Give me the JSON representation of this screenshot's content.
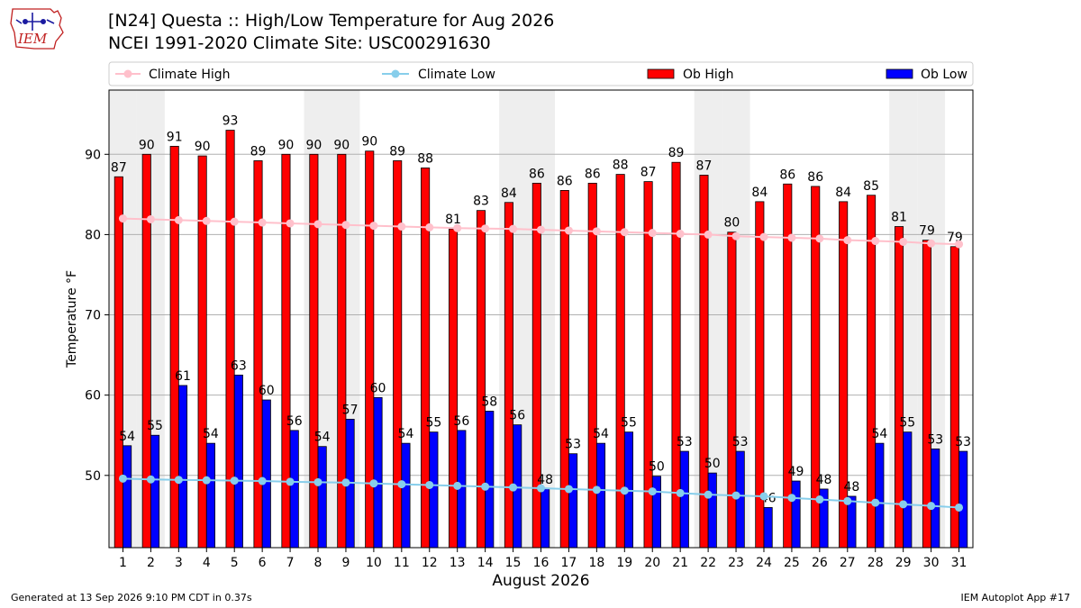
{
  "page": {
    "title_line1": "[N24] Questa :: High/Low Temperature for Aug 2026",
    "title_line2": "NCEI 1991-2020 Climate Site: USC00291630",
    "logo_text": "IEM",
    "footer_left": "Generated at 13 Sep 2026 9:10 PM CDT in 0.37s",
    "footer_right": "IEM Autoplot App #17"
  },
  "chart_data": {
    "type": "bar",
    "xlabel": "August 2026",
    "ylabel": "Temperature °F",
    "ylim": [
      41,
      98
    ],
    "yticks": [
      50,
      60,
      70,
      80,
      90
    ],
    "grid": true,
    "legend_placement": "top",
    "categories": [
      1,
      2,
      3,
      4,
      5,
      6,
      7,
      8,
      9,
      10,
      11,
      12,
      13,
      14,
      15,
      16,
      17,
      18,
      19,
      20,
      21,
      22,
      23,
      24,
      25,
      26,
      27,
      28,
      29,
      30,
      31
    ],
    "weekend_days": [
      1,
      2,
      8,
      9,
      15,
      16,
      22,
      23,
      29,
      30
    ],
    "series": [
      {
        "name": "Ob High",
        "kind": "bar",
        "color": "#ff0000",
        "values": [
          87.2,
          90.0,
          91.0,
          89.8,
          93.0,
          89.2,
          90.0,
          90.0,
          90.0,
          90.4,
          89.2,
          88.3,
          80.7,
          83.0,
          84.0,
          86.4,
          85.5,
          86.4,
          87.5,
          86.6,
          89.0,
          87.4,
          80.3,
          84.1,
          86.3,
          86.0,
          84.1,
          84.9,
          81.0,
          79.3,
          78.5
        ],
        "labels": [
          87,
          90,
          91,
          90,
          93,
          89,
          90,
          90,
          90,
          90,
          89,
          88,
          81,
          83,
          84,
          86,
          86,
          86,
          88,
          87,
          89,
          87,
          80,
          84,
          86,
          86,
          84,
          85,
          81,
          79,
          79
        ]
      },
      {
        "name": "Ob Low",
        "kind": "bar",
        "color": "#0000ff",
        "values": [
          53.7,
          55.0,
          61.2,
          54.0,
          62.5,
          59.4,
          55.6,
          53.6,
          57.0,
          59.7,
          54.0,
          55.4,
          55.6,
          58.0,
          56.3,
          48.3,
          52.7,
          54.0,
          55.4,
          49.9,
          53.0,
          50.3,
          53.0,
          46.0,
          49.3,
          48.3,
          47.4,
          54.0,
          55.4,
          53.3,
          53.0
        ],
        "labels": [
          54,
          55,
          61,
          54,
          63,
          60,
          56,
          54,
          57,
          60,
          54,
          55,
          56,
          58,
          56,
          48,
          53,
          54,
          55,
          50,
          53,
          50,
          53,
          46,
          49,
          48,
          48,
          54,
          55,
          53,
          53
        ]
      },
      {
        "name": "Climate High",
        "kind": "line",
        "color": "#ffc0cb",
        "values": [
          82.0,
          81.9,
          81.8,
          81.7,
          81.6,
          81.5,
          81.4,
          81.3,
          81.2,
          81.1,
          81.0,
          80.9,
          80.8,
          80.75,
          80.7,
          80.6,
          80.5,
          80.4,
          80.3,
          80.2,
          80.1,
          80.0,
          79.8,
          79.7,
          79.6,
          79.5,
          79.3,
          79.2,
          79.1,
          78.9,
          78.8
        ]
      },
      {
        "name": "Climate Low",
        "kind": "line",
        "color": "#87ceeb",
        "values": [
          49.6,
          49.5,
          49.45,
          49.4,
          49.35,
          49.3,
          49.2,
          49.15,
          49.1,
          49.0,
          48.9,
          48.8,
          48.7,
          48.6,
          48.5,
          48.4,
          48.3,
          48.2,
          48.1,
          48.0,
          47.8,
          47.6,
          47.5,
          47.4,
          47.2,
          47.0,
          46.8,
          46.6,
          46.4,
          46.2,
          46.0
        ]
      }
    ]
  }
}
